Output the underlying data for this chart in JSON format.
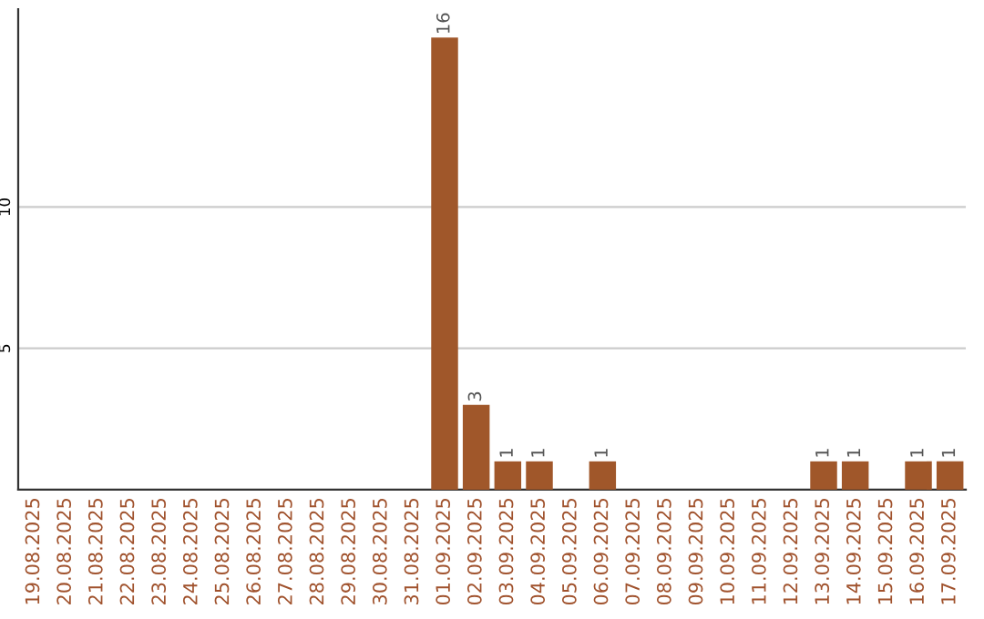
{
  "chart_data": {
    "type": "bar",
    "categories": [
      "19.08.2025",
      "20.08.2025",
      "21.08.2025",
      "22.08.2025",
      "23.08.2025",
      "24.08.2025",
      "25.08.2025",
      "26.08.2025",
      "27.08.2025",
      "28.08.2025",
      "29.08.2025",
      "30.08.2025",
      "31.08.2025",
      "01.09.2025",
      "02.09.2025",
      "03.09.2025",
      "04.09.2025",
      "05.09.2025",
      "06.09.2025",
      "07.09.2025",
      "08.09.2025",
      "09.09.2025",
      "10.09.2025",
      "11.09.2025",
      "12.09.2025",
      "13.09.2025",
      "14.09.2025",
      "15.09.2025",
      "16.09.2025",
      "17.09.2025"
    ],
    "values": [
      0,
      0,
      0,
      0,
      0,
      0,
      0,
      0,
      0,
      0,
      0,
      0,
      0,
      16,
      3,
      1,
      1,
      0,
      1,
      0,
      0,
      0,
      0,
      0,
      0,
      1,
      1,
      0,
      1,
      1
    ],
    "value_labels": [
      null,
      null,
      null,
      null,
      null,
      null,
      null,
      null,
      null,
      null,
      null,
      null,
      null,
      "16",
      "3",
      "1",
      "1",
      null,
      "1",
      null,
      null,
      null,
      null,
      null,
      null,
      "1",
      "1",
      null,
      "1",
      "1"
    ],
    "color": "#a0572a",
    "ylim": [
      0,
      17
    ],
    "yticks": [
      5,
      10
    ],
    "grid": "y",
    "legend": false
  }
}
